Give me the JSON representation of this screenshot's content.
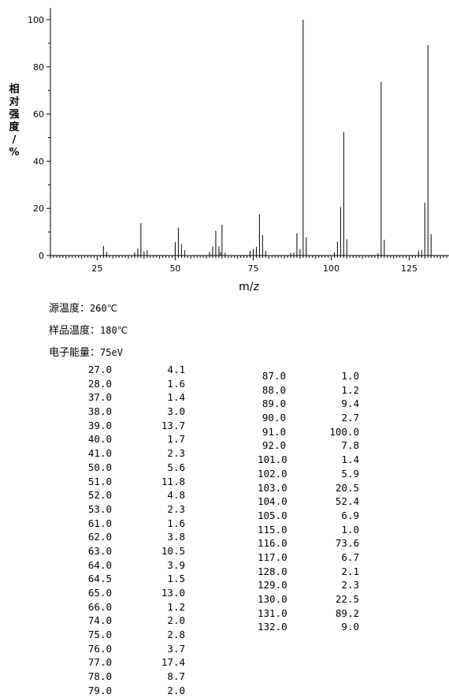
{
  "chart_data": {
    "type": "bar",
    "xlabel": "m/z",
    "ylabel": "相对强度/%",
    "xlim": [
      10,
      138
    ],
    "ylim": [
      0,
      105
    ],
    "x_ticks": [
      "25",
      "50",
      "75",
      "100",
      "125"
    ],
    "y_ticks": [
      "0",
      "20",
      "40",
      "60",
      "80",
      "100"
    ],
    "grid": false,
    "x": [
      27,
      28,
      37,
      38,
      39,
      40,
      41,
      50,
      51,
      52,
      53,
      61,
      62,
      63,
      64,
      64.5,
      65,
      66,
      74,
      75,
      76,
      77,
      78,
      79,
      87,
      88,
      89,
      90,
      91,
      92,
      101,
      102,
      103,
      104,
      105,
      115,
      116,
      117,
      128,
      129,
      130,
      131,
      132
    ],
    "values": [
      4.1,
      1.6,
      1.4,
      3.0,
      13.7,
      1.7,
      2.3,
      5.6,
      11.8,
      4.8,
      2.3,
      1.6,
      3.8,
      10.5,
      3.9,
      1.5,
      13.0,
      1.2,
      2.0,
      2.8,
      3.7,
      17.4,
      8.7,
      2.0,
      1.0,
      1.2,
      9.4,
      2.7,
      100.0,
      7.8,
      1.4,
      5.9,
      20.5,
      52.4,
      6.9,
      1.0,
      73.6,
      6.7,
      2.1,
      2.3,
      22.5,
      89.2,
      9.0
    ]
  },
  "conditions": [
    {
      "label": "源温度：",
      "value": "260℃"
    },
    {
      "label": "样品温度：",
      "value": "180℃"
    },
    {
      "label": "电子能量：",
      "value": "75eV"
    }
  ],
  "peak_table": {
    "left": [
      [
        "27.0",
        "4.1"
      ],
      [
        "28.0",
        "1.6"
      ],
      [
        "37.0",
        "1.4"
      ],
      [
        "38.0",
        "3.0"
      ],
      [
        "39.0",
        "13.7"
      ],
      [
        "40.0",
        "1.7"
      ],
      [
        "41.0",
        "2.3"
      ],
      [
        "50.0",
        "5.6"
      ],
      [
        "51.0",
        "11.8"
      ],
      [
        "52.0",
        "4.8"
      ],
      [
        "53.0",
        "2.3"
      ],
      [
        "61.0",
        "1.6"
      ],
      [
        "62.0",
        "3.8"
      ],
      [
        "63.0",
        "10.5"
      ],
      [
        "64.0",
        "3.9"
      ],
      [
        "64.5",
        "1.5"
      ],
      [
        "65.0",
        "13.0"
      ],
      [
        "66.0",
        "1.2"
      ],
      [
        "74.0",
        "2.0"
      ],
      [
        "75.0",
        "2.8"
      ],
      [
        "76.0",
        "3.7"
      ],
      [
        "77.0",
        "17.4"
      ],
      [
        "78.0",
        "8.7"
      ],
      [
        "79.0",
        "2.0"
      ]
    ],
    "right": [
      [
        "87.0",
        "1.0"
      ],
      [
        "88.0",
        "1.2"
      ],
      [
        "89.0",
        "9.4"
      ],
      [
        "90.0",
        "2.7"
      ],
      [
        "91.0",
        "100.0"
      ],
      [
        "92.0",
        "7.8"
      ],
      [
        "101.0",
        "1.4"
      ],
      [
        "102.0",
        "5.9"
      ],
      [
        "103.0",
        "20.5"
      ],
      [
        "104.0",
        "52.4"
      ],
      [
        "105.0",
        "6.9"
      ],
      [
        "115.0",
        "1.0"
      ],
      [
        "116.0",
        "73.6"
      ],
      [
        "117.0",
        "6.7"
      ],
      [
        "128.0",
        "2.1"
      ],
      [
        "129.0",
        "2.3"
      ],
      [
        "130.0",
        "22.5"
      ],
      [
        "131.0",
        "89.2"
      ],
      [
        "132.0",
        "9.0"
      ]
    ]
  }
}
